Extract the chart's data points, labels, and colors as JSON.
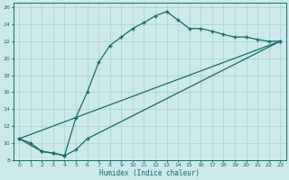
{
  "xlabel": "Humidex (Indice chaleur)",
  "bg_color": "#cce8e8",
  "line_color": "#1a6b6b",
  "grid_color": "#aad0d0",
  "xlim": [
    -0.5,
    23.5
  ],
  "ylim": [
    8,
    26.5
  ],
  "xticks": [
    0,
    1,
    2,
    3,
    4,
    5,
    6,
    7,
    8,
    9,
    10,
    11,
    12,
    13,
    14,
    15,
    16,
    17,
    18,
    19,
    20,
    21,
    22,
    23
  ],
  "yticks": [
    8,
    10,
    12,
    14,
    16,
    18,
    20,
    22,
    24,
    26
  ],
  "curve1_x": [
    0,
    1,
    2,
    3,
    4,
    5,
    6,
    7,
    8,
    9,
    10,
    11,
    12,
    13,
    14,
    15,
    16,
    17,
    18,
    19,
    20,
    21,
    22,
    23
  ],
  "curve1_y": [
    10.5,
    10.0,
    9.0,
    8.8,
    8.5,
    13.0,
    16.0,
    19.5,
    21.5,
    22.5,
    23.5,
    24.2,
    25.0,
    25.5,
    24.5,
    23.5,
    23.5,
    23.2,
    22.8,
    22.5,
    22.5,
    22.2,
    22.0,
    22.0
  ],
  "curve2_x": [
    0,
    2,
    3,
    4,
    5,
    6,
    23
  ],
  "curve2_y": [
    10.5,
    9.0,
    8.8,
    8.5,
    9.2,
    10.5,
    22.0
  ],
  "curve3_x": [
    0,
    23
  ],
  "curve3_y": [
    10.5,
    22.0
  ],
  "markersize": 2.5,
  "linewidth": 0.9
}
